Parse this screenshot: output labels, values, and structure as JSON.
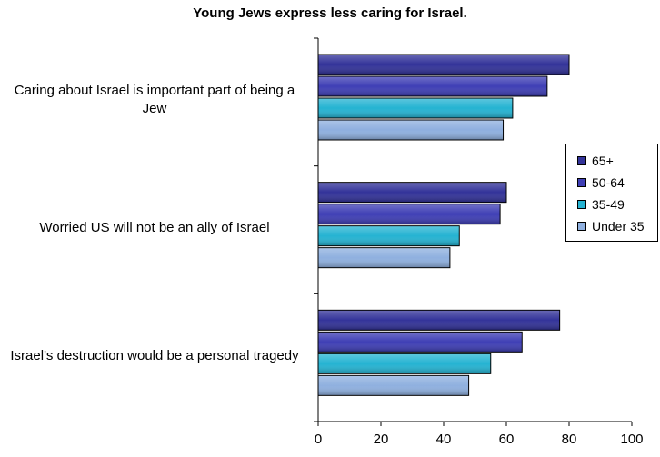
{
  "chart_data": {
    "type": "bar",
    "orientation": "horizontal",
    "title": "Young Jews express less caring for Israel.",
    "xlabel": "",
    "ylabel": "",
    "xlim": [
      0,
      100
    ],
    "x_ticks": [
      "0",
      "20",
      "40",
      "60",
      "80",
      "100"
    ],
    "categories": [
      "Caring about Israel is important part of being a Jew",
      "Worried US will not be an ally of Israel",
      "Israel's destruction would be a personal tragedy"
    ],
    "series": [
      {
        "name": "65+",
        "color": "#333399",
        "values": [
          80,
          60,
          77
        ]
      },
      {
        "name": "50-64",
        "color": "#3F3FB5",
        "values": [
          73,
          58,
          65
        ]
      },
      {
        "name": "35-49",
        "color": "#25B3D2",
        "values": [
          62,
          45,
          55
        ]
      },
      {
        "name": "Under 35",
        "color": "#8FB0DF",
        "values": [
          59,
          42,
          48
        ]
      }
    ],
    "legend": "right",
    "grid": false
  }
}
